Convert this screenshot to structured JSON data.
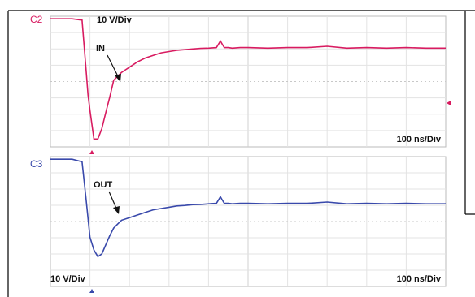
{
  "chart_data": [
    {
      "type": "line",
      "channel": "C2",
      "vertical_scale": "10 V/Div",
      "time_scale": "100 ns/Div",
      "annotation": "IN",
      "color": "#d81b60",
      "grid": true,
      "x_unit": "ns",
      "xlim": [
        0,
        1000
      ],
      "y_unit": "div",
      "ylim": [
        -2.5,
        2.5
      ],
      "series": [
        {
          "x": [
            0,
            40,
            55,
            80,
            90,
            95,
            100,
            110,
            120,
            130,
            140,
            150,
            160,
            170,
            180,
            190,
            200,
            220,
            240,
            260,
            280,
            300,
            320,
            340,
            360,
            380,
            400,
            420,
            430,
            440,
            450,
            460,
            480,
            500,
            550,
            600,
            650,
            700,
            750,
            800,
            850,
            900,
            950,
            1000
          ],
          "y": [
            2.4,
            2.4,
            2.4,
            2.35,
            0.5,
            -0.5,
            -1.1,
            -2.2,
            -2.2,
            -1.8,
            -1.2,
            -0.6,
            0.05,
            0.2,
            0.35,
            0.45,
            0.55,
            0.75,
            0.9,
            1.0,
            1.1,
            1.15,
            1.2,
            1.22,
            1.25,
            1.27,
            1.28,
            1.3,
            1.55,
            1.3,
            1.3,
            1.28,
            1.3,
            1.3,
            1.28,
            1.3,
            1.3,
            1.35,
            1.28,
            1.3,
            1.28,
            1.3,
            1.28,
            1.28
          ]
        }
      ]
    },
    {
      "type": "line",
      "channel": "C3",
      "vertical_scale": "10 V/Div",
      "time_scale": "100 ns/Div",
      "annotation": "OUT",
      "color": "#3949ab",
      "grid": true,
      "x_unit": "ns",
      "xlim": [
        0,
        1000
      ],
      "y_unit": "div",
      "ylim": [
        -2.5,
        2.5
      ],
      "series": [
        {
          "x": [
            0,
            40,
            55,
            80,
            90,
            100,
            110,
            120,
            130,
            140,
            150,
            160,
            170,
            180,
            200,
            220,
            240,
            260,
            280,
            300,
            320,
            340,
            360,
            380,
            400,
            420,
            430,
            440,
            450,
            460,
            480,
            500,
            550,
            600,
            650,
            700,
            750,
            800,
            850,
            900,
            950,
            1000
          ],
          "y": [
            2.4,
            2.4,
            2.4,
            2.3,
            0.9,
            -0.6,
            -1.1,
            -1.35,
            -1.25,
            -0.9,
            -0.55,
            -0.25,
            -0.1,
            0.05,
            0.15,
            0.25,
            0.35,
            0.45,
            0.5,
            0.55,
            0.6,
            0.62,
            0.65,
            0.66,
            0.68,
            0.7,
            0.95,
            0.7,
            0.7,
            0.68,
            0.7,
            0.7,
            0.68,
            0.7,
            0.7,
            0.75,
            0.68,
            0.7,
            0.68,
            0.7,
            0.68,
            0.68
          ]
        }
      ]
    }
  ]
}
